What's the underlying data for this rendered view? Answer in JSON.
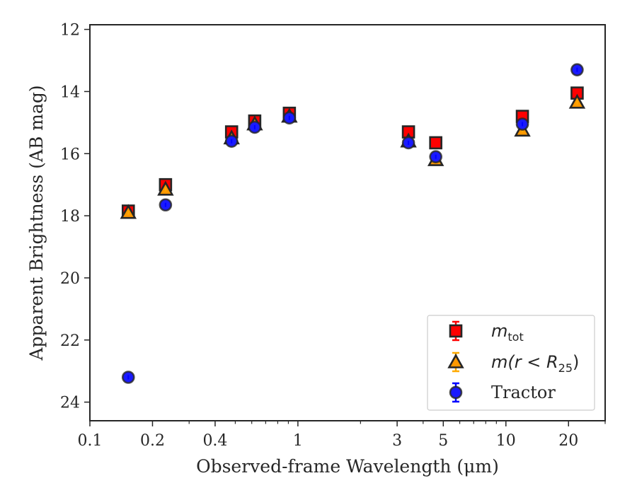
{
  "chart_data": {
    "type": "scatter",
    "xlabel": "Observed-frame Wavelength (μm)",
    "ylabel": "Apparent Brightness (AB mag)",
    "xscale": "log",
    "xlim": [
      0.1,
      30
    ],
    "ylim": [
      24.6,
      11.85
    ],
    "y_inverted": true,
    "grid": false,
    "legend_position": "bottom-right",
    "x_ticks": [
      0.1,
      0.2,
      0.4,
      1,
      3,
      5,
      10,
      20
    ],
    "x_tick_labels": [
      "0.1",
      "0.2",
      "0.4",
      "1",
      "3",
      "5",
      "10",
      "20"
    ],
    "y_ticks": [
      12,
      14,
      16,
      18,
      20,
      22,
      24
    ],
    "y_tick_labels": [
      "12",
      "14",
      "16",
      "18",
      "20",
      "22",
      "24"
    ],
    "series": [
      {
        "name": "m_tot",
        "legend_main": "m",
        "legend_sub": "tot",
        "legend_after": "",
        "marker": "square",
        "face_color": "#ff0000",
        "edge_color": "#262626",
        "errbar_color": "#ff0000",
        "x": [
          0.153,
          0.231,
          0.48,
          0.62,
          0.91,
          3.4,
          4.6,
          12.0,
          22.0
        ],
        "y": [
          17.85,
          17.0,
          15.3,
          14.95,
          14.7,
          15.3,
          15.65,
          14.8,
          14.05
        ]
      },
      {
        "name": "m(r < R_25)",
        "legend_main": "m(r < R",
        "legend_sub": "25",
        "legend_after": ")",
        "marker": "triangle",
        "face_color": "#ff9900",
        "edge_color": "#262626",
        "errbar_color": "#ffaa00",
        "x": [
          0.153,
          0.231,
          0.48,
          0.62,
          0.91,
          3.4,
          4.6,
          12.0,
          22.0
        ],
        "y": [
          17.9,
          17.15,
          15.5,
          15.05,
          14.8,
          15.6,
          16.2,
          15.25,
          14.35
        ]
      },
      {
        "name": "Tractor",
        "legend_main": "Tractor",
        "legend_sub": "",
        "legend_after": "",
        "marker": "circle",
        "face_color": "#1a1aff",
        "edge_color": "#262626",
        "errbar_color": "#0000ff",
        "x": [
          0.153,
          0.231,
          0.48,
          0.62,
          0.91,
          3.4,
          4.6,
          12.0,
          22.0
        ],
        "y": [
          23.2,
          17.65,
          15.6,
          15.15,
          14.85,
          15.65,
          16.1,
          15.05,
          13.3
        ]
      }
    ]
  }
}
